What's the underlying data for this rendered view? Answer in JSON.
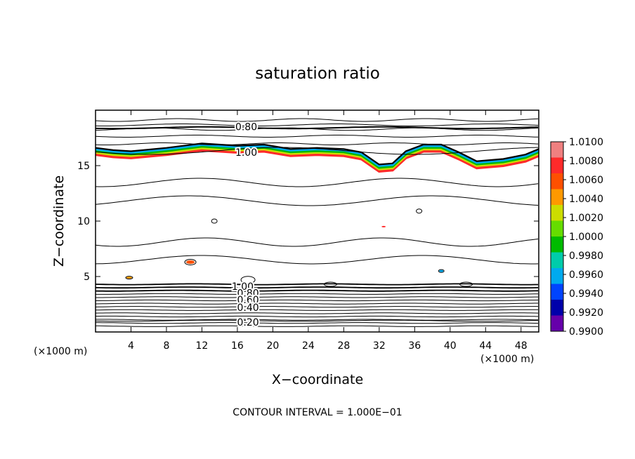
{
  "chart_data": {
    "type": "heatmap",
    "title": "saturation ratio",
    "xlabel": "X−coordinate",
    "ylabel": "Z−coordinate",
    "x_unit_label_left": "(×1000 m)",
    "x_unit_label_right": "(×1000 m)",
    "footer": "CONTOUR INTERVAL = 1.000E−01",
    "xlim": [
      0,
      50
    ],
    "ylim": [
      0,
      20
    ],
    "x_ticks": [
      4,
      8,
      12,
      16,
      20,
      24,
      28,
      32,
      36,
      40,
      44,
      48
    ],
    "x_tick_labels": [
      "4",
      "8",
      "12",
      "16",
      "20",
      "24",
      "28",
      "32",
      "36",
      "40",
      "44",
      "48"
    ],
    "y_ticks": [
      5,
      10,
      15
    ],
    "y_tick_labels": [
      "5",
      "10",
      "15"
    ],
    "contour_interval": 0.1,
    "contour_labels": [
      {
        "text": "0.80",
        "x": 17.0,
        "y": 18.5
      },
      {
        "text": "1.00",
        "x": 17.0,
        "y": 16.2
      },
      {
        "text": "1.00",
        "x": 16.6,
        "y": 4.1
      },
      {
        "text": "0.80",
        "x": 17.2,
        "y": 3.5
      },
      {
        "text": "0.60",
        "x": 17.2,
        "y": 2.9
      },
      {
        "text": "0.40",
        "x": 17.2,
        "y": 2.2
      },
      {
        "text": "0.20",
        "x": 17.2,
        "y": 0.9
      }
    ],
    "colorbar": {
      "labels": [
        "1.0100",
        "1.0080",
        "1.0060",
        "1.0040",
        "1.0020",
        "1.0000",
        "0.9980",
        "0.9960",
        "0.9940",
        "0.9920",
        "0.9900"
      ],
      "colors": [
        "#f08080",
        "#ff2a2a",
        "#ff5000",
        "#ff9900",
        "#ccdd00",
        "#66dd00",
        "#00bb00",
        "#00ccaa",
        "#00aaee",
        "#0044ff",
        "#0000aa",
        "#6600aa"
      ]
    }
  }
}
